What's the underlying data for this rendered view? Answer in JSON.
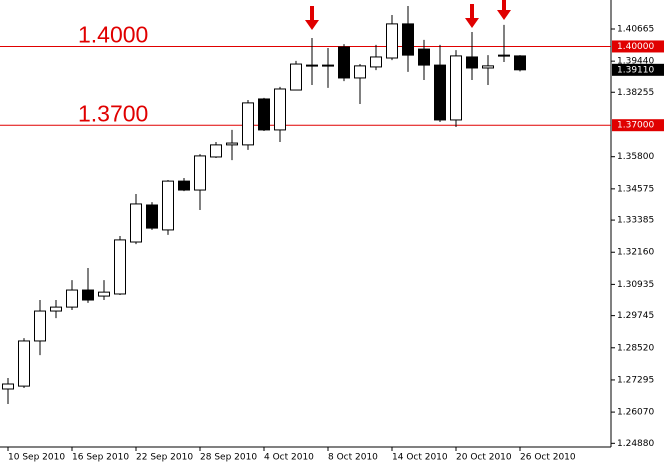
{
  "chart_data": {
    "type": "candlestick",
    "categories": [
      "10 Sep 2010",
      null,
      null,
      null,
      "16 Sep 2010",
      null,
      null,
      null,
      "22 Sep 2010",
      null,
      null,
      null,
      "28 Sep 2010",
      null,
      null,
      null,
      "4 Oct 2010",
      null,
      null,
      null,
      "8 Oct 2010",
      null,
      null,
      null,
      "14 Oct 2010",
      null,
      null,
      null,
      "20 Oct 2010",
      null,
      null,
      null,
      "26 Oct 2010"
    ],
    "open": [
      1.2695,
      1.2706,
      1.2878,
      1.2992,
      1.3007,
      1.3072,
      1.3049,
      1.3057,
      1.3255,
      1.3396,
      1.3301,
      1.3487,
      1.3453,
      1.3579,
      1.3625,
      1.3625,
      1.38,
      1.3682,
      1.3834,
      1.3926,
      1.3929,
      1.3998,
      1.388,
      1.3922,
      1.3956,
      1.4086,
      1.399,
      1.3929,
      1.372,
      1.396,
      1.3918,
      1.3964,
      1.3964
    ],
    "high": [
      1.2737,
      1.2889,
      1.3034,
      1.3034,
      1.311,
      1.3156,
      1.311,
      1.3278,
      1.3438,
      1.3407,
      1.3491,
      1.3499,
      1.359,
      1.3636,
      1.3682,
      1.3796,
      1.3804,
      1.3846,
      1.3945,
      1.4032,
      1.3994,
      1.4009,
      1.3933,
      1.4006,
      1.412,
      1.4154,
      1.4025,
      1.4006,
      1.3986,
      1.4055,
      1.3967,
      1.4082,
      1.3967
    ],
    "low": [
      1.2638,
      1.2699,
      1.2824,
      1.2965,
      1.2996,
      1.3023,
      1.3034,
      1.3053,
      1.3247,
      1.3301,
      1.3282,
      1.3449,
      1.3377,
      1.3575,
      1.3567,
      1.3606,
      1.3678,
      1.3636,
      1.3834,
      1.3853,
      1.3842,
      1.3868,
      1.3781,
      1.391,
      1.3948,
      1.3903,
      1.3872,
      1.3712,
      1.3693,
      1.3872,
      1.3853,
      1.3941,
      1.3905
    ],
    "close": [
      1.2714,
      1.2878,
      1.2992,
      1.3007,
      1.3072,
      1.3034,
      1.3064,
      1.3263,
      1.34,
      1.3308,
      1.3487,
      1.3453,
      1.3583,
      1.3625,
      1.3632,
      1.3785,
      1.3682,
      1.3838,
      1.3933,
      1.3929,
      1.3926,
      1.388,
      1.3926,
      1.396,
      1.4086,
      1.3967,
      1.3929,
      1.372,
      1.3964,
      1.3918,
      1.3926,
      1.3967,
      1.3911
    ],
    "ylim": [
      1.2474,
      1.4177
    ],
    "yticks": [
      1.40665,
      {
        "value": 1.3944,
        "label": "1.39440"
      },
      1.38255,
      {
        "value": 1.358,
        "label": "1.35800"
      },
      1.34575,
      1.33385,
      {
        "value": 1.3216,
        "label": "1.32160"
      },
      1.30935,
      1.29745,
      {
        "value": 1.2852,
        "label": "1.28520"
      },
      1.27295,
      {
        "value": 1.2607,
        "label": "1.26070"
      },
      {
        "value": 1.2488,
        "label": "1.24880"
      }
    ],
    "levels": [
      {
        "value": 1.4,
        "label": "1.4000",
        "axis_label": "1.40000"
      },
      {
        "value": 1.37,
        "label": "1.3700",
        "axis_label": "1.37000"
      }
    ],
    "last_price": {
      "value": 1.3911,
      "label": "1.39110"
    },
    "level_color": "#e00000",
    "up_color": "#ffffff",
    "down_color": "#000000"
  }
}
